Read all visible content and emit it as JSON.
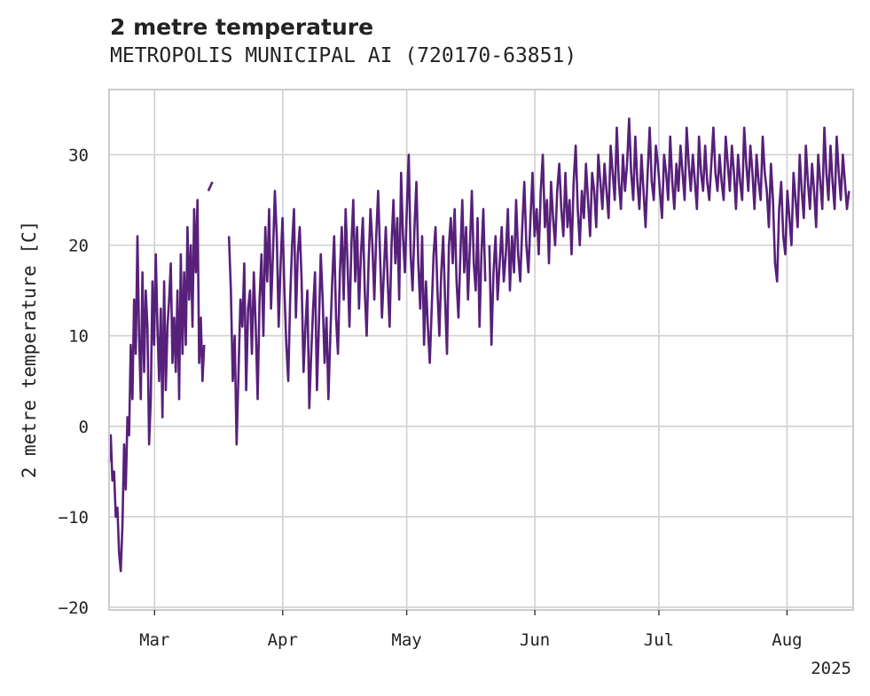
{
  "chart_data": {
    "type": "line",
    "title": "2 metre temperature",
    "subtitle": "METROPOLIS MUNICIPAL AI (720170-63851)",
    "ylabel": "2 metre temperature [C]",
    "xlabel": "",
    "x_start": "2025-02-18",
    "x_end": "2025-08-17",
    "xlim": [
      "2025-02-18",
      "2025-08-17"
    ],
    "ylim": [
      -20.3,
      37.2
    ],
    "yticks": [
      -20,
      -10,
      0,
      10,
      20,
      30
    ],
    "xticks": [
      {
        "date": "2025-03-01",
        "label": "Mar"
      },
      {
        "date": "2025-04-01",
        "label": "Apr"
      },
      {
        "date": "2025-05-01",
        "label": "May"
      },
      {
        "date": "2025-06-01",
        "label": "Jun"
      },
      {
        "date": "2025-07-01",
        "label": "Jul"
      },
      {
        "date": "2025-08-01",
        "label": "Aug"
      }
    ],
    "x_offset_label": "2025",
    "grid": true,
    "line_color": "#57207a",
    "series": [
      {
        "segments": [
          {
            "start": "2025-02-18",
            "end": "2025-03-13",
            "values": [
              -4,
              -1,
              -6,
              -5,
              -10,
              -9,
              -14,
              -16,
              -11,
              -2,
              -7,
              1,
              -1,
              9,
              3,
              14,
              8,
              21,
              10,
              3,
              17,
              6,
              15,
              11,
              -2,
              3,
              16,
              9,
              19,
              11,
              5,
              13,
              1,
              16,
              4,
              11,
              14,
              18,
              7,
              12,
              6,
              15,
              3,
              19,
              8,
              17,
              9,
              22,
              14,
              20,
              11,
              24,
              17,
              25,
              7,
              12,
              5,
              9
            ]
          },
          {
            "start": "2025-03-14",
            "end": "2025-03-15",
            "values": [
              26,
              27
            ]
          },
          {
            "start": "2025-03-19",
            "end": "2025-05-20",
            "values": [
              21,
              15,
              5,
              10,
              -2,
              6,
              14,
              11,
              18,
              4,
              13,
              15,
              8,
              17,
              11,
              3,
              14,
              19,
              10,
              22,
              16,
              24,
              13,
              19,
              26,
              21,
              11,
              18,
              23,
              15,
              9,
              5,
              14,
              20,
              24,
              12,
              19,
              22,
              16,
              6,
              11,
              15,
              2,
              8,
              13,
              17,
              4,
              11,
              19,
              14,
              7,
              12,
              3,
              10,
              16,
              21,
              12,
              8,
              17,
              22,
              14,
              24,
              18,
              11,
              20,
              25,
              16,
              22,
              13,
              19,
              23,
              15,
              10,
              18,
              24,
              20,
              14,
              21,
              26,
              19,
              12,
              17,
              22,
              16,
              11,
              20,
              25,
              18,
              23,
              14,
              28,
              21,
              17,
              24,
              30,
              19,
              15,
              22,
              27,
              18,
              13,
              21,
              9,
              16,
              11,
              7,
              13,
              19,
              22,
              15,
              10,
              17,
              21,
              14,
              8,
              20,
              23,
              18,
              24,
              16,
              12,
              19,
              25,
              17,
              22,
              14,
              20,
              26,
              18,
              15,
              23,
              11,
              19,
              24,
              16
            ]
          },
          {
            "start": "2025-05-21",
            "end": "2025-08-16",
            "values": [
              20,
              9,
              17,
              21,
              14,
              18,
              22,
              16,
              19,
              24,
              15,
              21,
              17,
              25,
              19,
              16,
              22,
              27,
              20,
              17,
              23,
              28,
              21,
              24,
              19,
              26,
              30,
              22,
              25,
              18,
              27,
              23,
              20,
              26,
              29,
              24,
              21,
              28,
              22,
              25,
              19,
              27,
              31,
              24,
              20,
              26,
              23,
              29,
              25,
              21,
              28,
              26,
              22,
              30,
              27,
              24,
              29,
              26,
              23,
              31,
              28,
              25,
              33,
              27,
              24,
              30,
              26,
              29,
              34,
              28,
              25,
              32,
              27,
              24,
              30,
              26,
              22,
              28,
              33,
              27,
              25,
              31,
              29,
              26,
              23,
              30,
              28,
              25,
              32,
              27,
              24,
              29,
              26,
              31,
              28,
              25,
              33,
              29,
              26,
              30,
              27,
              24,
              32,
              28,
              26,
              31,
              27,
              25,
              29,
              33,
              28,
              26,
              30,
              27,
              25,
              32,
              29,
              26,
              31,
              28,
              24,
              30,
              27,
              25,
              33,
              29,
              26,
              31,
              28,
              24,
              30,
              27,
              25,
              32,
              28,
              26,
              22,
              29,
              25,
              18,
              16,
              24,
              27,
              21,
              19,
              26,
              23,
              20,
              28,
              25,
              22,
              30,
              26,
              23,
              31,
              27,
              24,
              29,
              26,
              22,
              30,
              27,
              24,
              33,
              28,
              25,
              31,
              27,
              24,
              32,
              28,
              25,
              30,
              27,
              24,
              26
            ]
          }
        ]
      }
    ]
  }
}
